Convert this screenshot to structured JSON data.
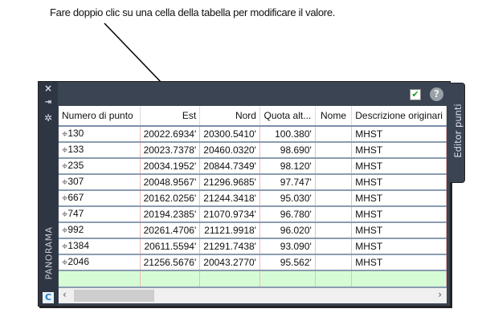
{
  "caption": "Fare doppio clic su una cella della tabella per modificare il valore.",
  "strip": {
    "close_icon": "×",
    "pin_icon": "⇥",
    "settings_icon": "✲",
    "panorama_label": "PANORAMA",
    "logo_letter": "C"
  },
  "toolbar": {
    "ok_icon": "✔",
    "help_icon": "?"
  },
  "side_tab": "Editor punti",
  "table": {
    "columns": [
      "Numero di punto",
      "Est",
      "Nord",
      "Quota alt...",
      "Nome",
      "Descrizione originari"
    ],
    "rows": [
      [
        "130",
        "20022.6934'",
        "20300.5410'",
        "100.380'",
        "",
        "MHST"
      ],
      [
        "133",
        "20023.7378'",
        "20460.0320'",
        "98.690'",
        "",
        "MHST"
      ],
      [
        "235",
        "20034.1952'",
        "20844.7349'",
        "98.120'",
        "",
        "MHST"
      ],
      [
        "307",
        "20048.9567'",
        "21296.9685'",
        "97.747'",
        "",
        "MHST"
      ],
      [
        "667",
        "20162.0256'",
        "21244.3418'",
        "95.030'",
        "",
        "MHST"
      ],
      [
        "747",
        "20194.2385'",
        "21070.9734'",
        "96.780'",
        "",
        "MHST"
      ],
      [
        "992",
        "20261.4706'",
        "21121.9918'",
        "96.020'",
        "",
        "MHST"
      ],
      [
        "1384",
        "20611.5594'",
        "21291.7438'",
        "93.090'",
        "",
        "MHST"
      ],
      [
        "2046",
        "21256.5676'",
        "20043.2770'",
        "95.562'",
        "",
        "MHST"
      ]
    ]
  },
  "scroll": {
    "left": "‹",
    "right": "›"
  },
  "colors": {
    "new_row": "#d6fcd6",
    "panel": "#3b4453"
  }
}
